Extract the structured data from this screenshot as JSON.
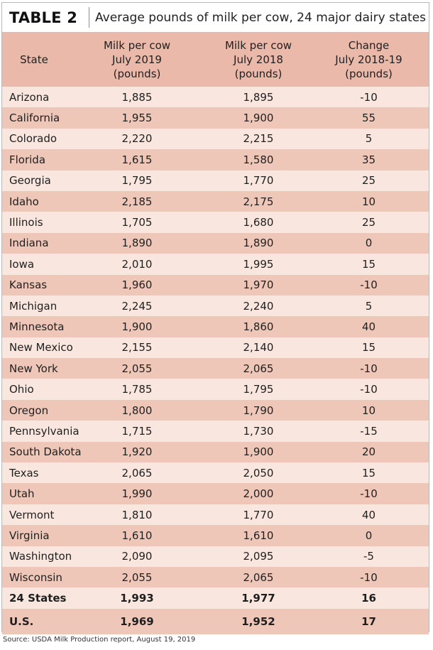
{
  "table": {
    "label": "TABLE 2",
    "title": "Average pounds of milk per cow, 24 major dairy states",
    "headers": {
      "state": "State",
      "jul2019": "Milk per cow\nJuly 2019\n(pounds)",
      "jul2018": "Milk per cow\nJuly 2018\n(pounds)",
      "change": "Change\nJuly 2018-19\n(pounds)"
    },
    "rows": [
      {
        "state": "Arizona",
        "jul2019": "1,885",
        "jul2018": "1,895",
        "change": "-10"
      },
      {
        "state": "California",
        "jul2019": "1,955",
        "jul2018": "1,900",
        "change": "55"
      },
      {
        "state": "Colorado",
        "jul2019": "2,220",
        "jul2018": "2,215",
        "change": "5"
      },
      {
        "state": "Florida",
        "jul2019": "1,615",
        "jul2018": "1,580",
        "change": "35"
      },
      {
        "state": "Georgia",
        "jul2019": "1,795",
        "jul2018": "1,770",
        "change": "25"
      },
      {
        "state": "Idaho",
        "jul2019": "2,185",
        "jul2018": "2,175",
        "change": "10"
      },
      {
        "state": "Illinois",
        "jul2019": "1,705",
        "jul2018": "1,680",
        "change": "25"
      },
      {
        "state": "Indiana",
        "jul2019": "1,890",
        "jul2018": "1,890",
        "change": "0"
      },
      {
        "state": "Iowa",
        "jul2019": "2,010",
        "jul2018": "1,995",
        "change": "15"
      },
      {
        "state": "Kansas",
        "jul2019": "1,960",
        "jul2018": "1,970",
        "change": "-10"
      },
      {
        "state": "Michigan",
        "jul2019": "2,245",
        "jul2018": "2,240",
        "change": "5"
      },
      {
        "state": "Minnesota",
        "jul2019": "1,900",
        "jul2018": "1,860",
        "change": "40"
      },
      {
        "state": "New Mexico",
        "jul2019": "2,155",
        "jul2018": "2,140",
        "change": "15"
      },
      {
        "state": "New York",
        "jul2019": "2,055",
        "jul2018": "2,065",
        "change": "-10"
      },
      {
        "state": "Ohio",
        "jul2019": "1,785",
        "jul2018": "1,795",
        "change": "-10"
      },
      {
        "state": "Oregon",
        "jul2019": "1,800",
        "jul2018": "1,790",
        "change": "10"
      },
      {
        "state": "Pennsylvania",
        "jul2019": "1,715",
        "jul2018": "1,730",
        "change": "-15"
      },
      {
        "state": "South Dakota",
        "jul2019": "1,920",
        "jul2018": "1,900",
        "change": "20"
      },
      {
        "state": "Texas",
        "jul2019": "2,065",
        "jul2018": "2,050",
        "change": "15"
      },
      {
        "state": "Utah",
        "jul2019": "1,990",
        "jul2018": "2,000",
        "change": "-10"
      },
      {
        "state": "Vermont",
        "jul2019": "1,810",
        "jul2018": "1,770",
        "change": "40"
      },
      {
        "state": "Virginia",
        "jul2019": "1,610",
        "jul2018": "1,610",
        "change": "0"
      },
      {
        "state": "Washington",
        "jul2019": "2,090",
        "jul2018": "2,095",
        "change": "-5"
      },
      {
        "state": "Wisconsin",
        "jul2019": "2,055",
        "jul2018": "2,065",
        "change": "-10"
      }
    ],
    "totals": [
      {
        "state": "24 States",
        "jul2019": "1,993",
        "jul2018": "1,977",
        "change": "16"
      },
      {
        "state": "U.S.",
        "jul2019": "1,969",
        "jul2018": "1,952",
        "change": "17"
      }
    ]
  },
  "source": "Source: USDA Milk Production report, August 19, 2019",
  "colors": {
    "header_bg": "#ebb9a9",
    "row_light": "#f9e7df",
    "row_dark": "#efc7b8",
    "body_bg": "#f7e1d7"
  }
}
